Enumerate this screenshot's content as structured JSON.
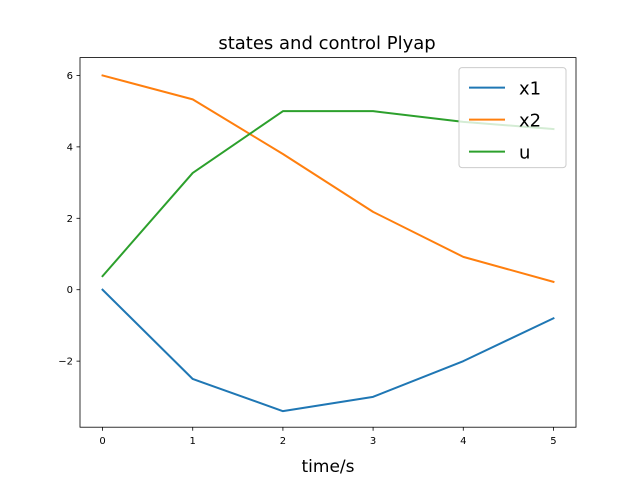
{
  "chart_data": {
    "type": "line",
    "title": "states and control Plyap",
    "xlabel": "time/s",
    "ylabel": "",
    "x": [
      0,
      1,
      2,
      3,
      4,
      5
    ],
    "xlim": [
      -0.25,
      5.25
    ],
    "ylim": [
      -3.85,
      6.5
    ],
    "xticks": [
      0,
      1,
      2,
      3,
      4,
      5
    ],
    "yticks": [
      -2,
      0,
      2,
      4,
      6
    ],
    "ytick_labels": [
      "−2",
      "0",
      "2",
      "4",
      "6"
    ],
    "grid": false,
    "legend_position": "top-right",
    "series": [
      {
        "name": "x1",
        "color": "#1f77b4",
        "values": [
          0.0,
          -2.5,
          -3.4,
          -3.0,
          -2.0,
          -0.8
        ]
      },
      {
        "name": "x2",
        "color": "#ff7f0e",
        "values": [
          6.0,
          5.33,
          3.8,
          2.18,
          0.92,
          0.22
        ]
      },
      {
        "name": "u",
        "color": "#2ca02c",
        "values": [
          0.38,
          3.27,
          5.0,
          5.0,
          4.7,
          4.5
        ]
      }
    ]
  }
}
